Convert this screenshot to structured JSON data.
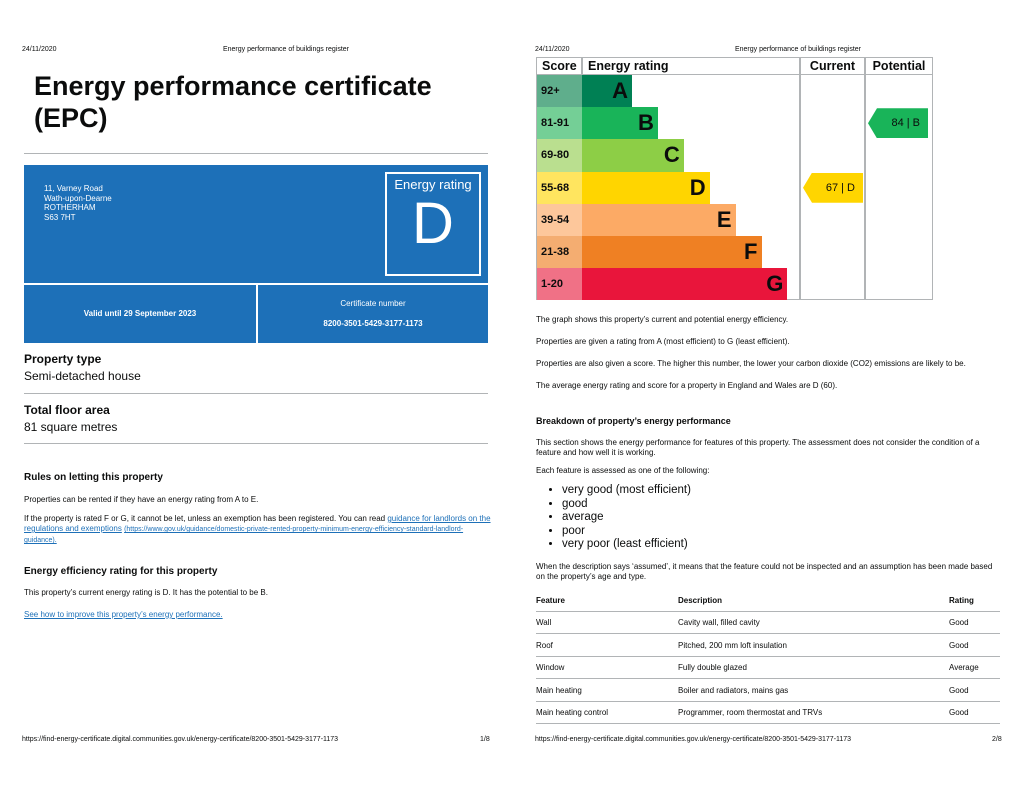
{
  "page1": {
    "header": {
      "date": "24/11/2020",
      "site": "Energy performance of buildings register"
    },
    "title": "Energy performance certificate (EPC)",
    "address": [
      "11, Varney Road",
      "Wath-upon-Dearne",
      "ROTHERHAM",
      "S63 7HT"
    ],
    "energy_rating": {
      "label": "Energy rating",
      "value": "D"
    },
    "valid_until": "Valid until 29 September 2023",
    "certificate": {
      "label": "Certificate number",
      "value": "8200-3501-5429-3177-1173"
    },
    "property_type": {
      "label": "Property type",
      "value": "Semi-detached house"
    },
    "floor_area": {
      "label": "Total floor area",
      "value": "81 square metres"
    },
    "rules": {
      "heading": "Rules on letting this property",
      "paragraph1": "Properties can be rented if they have an energy rating from A to E.",
      "paragraph2": {
        "text": "If the property is rated F or G, it cannot be let, unless an exemption has been registered. You can read",
        "link": "guidance for landlords on the regulations and exemptions",
        "url": "(https://www.gov.uk/guidance/domestic-private-rented-property-minimum-energy-efficiency-standard-landlord-guidance)."
      }
    },
    "efficiency": {
      "heading": "Energy efficiency rating for this property",
      "text": "This property’s current energy rating is D. It has the potential to be B.",
      "link": "See how to improve this property’s energy performance."
    },
    "footer": {
      "url": "https://find-energy-certificate.digital.communities.gov.uk/energy-certificate/8200-3501-5429-3177-1173",
      "page": "1/8"
    }
  },
  "page2": {
    "header": {
      "date": "24/11/2020",
      "site": "Energy performance of buildings register"
    },
    "rating_chart": {
      "headers": [
        "Score",
        "Energy rating",
        "Current",
        "Potential"
      ],
      "bands": [
        {
          "score": "92+",
          "letter": "A",
          "color": "#008054",
          "score_color": "#5fae8c"
        },
        {
          "score": "81-91",
          "letter": "B",
          "color": "#19b459",
          "score_color": "#74cf96"
        },
        {
          "score": "69-80",
          "letter": "C",
          "color": "#8dce46",
          "score_color": "#badf8f"
        },
        {
          "score": "55-68",
          "letter": "D",
          "color": "#ffd500",
          "score_color": "#ffe55f"
        },
        {
          "score": "39-54",
          "letter": "E",
          "color": "#fcaa65",
          "score_color": "#fdc79b"
        },
        {
          "score": "21-38",
          "letter": "F",
          "color": "#ef8023",
          "score_color": "#f4ad71"
        },
        {
          "score": "1-20",
          "letter": "G",
          "color": "#e9153b",
          "score_color": "#f07186"
        }
      ],
      "current": "67 | D",
      "potential": "84 | B"
    },
    "paragraphs": [
      "The graph shows this property’s current and potential energy efficiency.",
      "Properties are given a rating from A (most efficient) to G (least efficient).",
      "Properties are also given a score. The higher this number, the lower your carbon dioxide (CO2) emissions are likely to be.",
      "The average energy rating and score for a property in England and Wales are D (60)."
    ],
    "breakdown": {
      "heading": "Breakdown of property’s energy performance",
      "intro": "This section shows the energy performance for features of this property. The assessment does not consider the condition of a feature and how well it is working.",
      "assessed": "Each feature is assessed as one of the following:",
      "levels": [
        "very good (most efficient)",
        "good",
        "average",
        "poor",
        "very poor (least efficient)"
      ],
      "assumed": "When the description says ‘assumed’, it means that the feature could not be inspected and an assumption has been made based on the property’s age and type.",
      "table": {
        "headers": [
          "Feature",
          "Description",
          "Rating"
        ],
        "rows": [
          [
            "Wall",
            "Cavity wall, filled cavity",
            "Good"
          ],
          [
            "Roof",
            "Pitched, 200 mm loft insulation",
            "Good"
          ],
          [
            "Window",
            "Fully double glazed",
            "Average"
          ],
          [
            "Main heating",
            "Boiler and radiators, mains gas",
            "Good"
          ],
          [
            "Main heating control",
            "Programmer, room thermostat and TRVs",
            "Good"
          ]
        ]
      }
    },
    "footer": {
      "url": "https://find-energy-certificate.digital.communities.gov.uk/energy-certificate/8200-3501-5429-3177-1173",
      "page": "2/8"
    }
  }
}
